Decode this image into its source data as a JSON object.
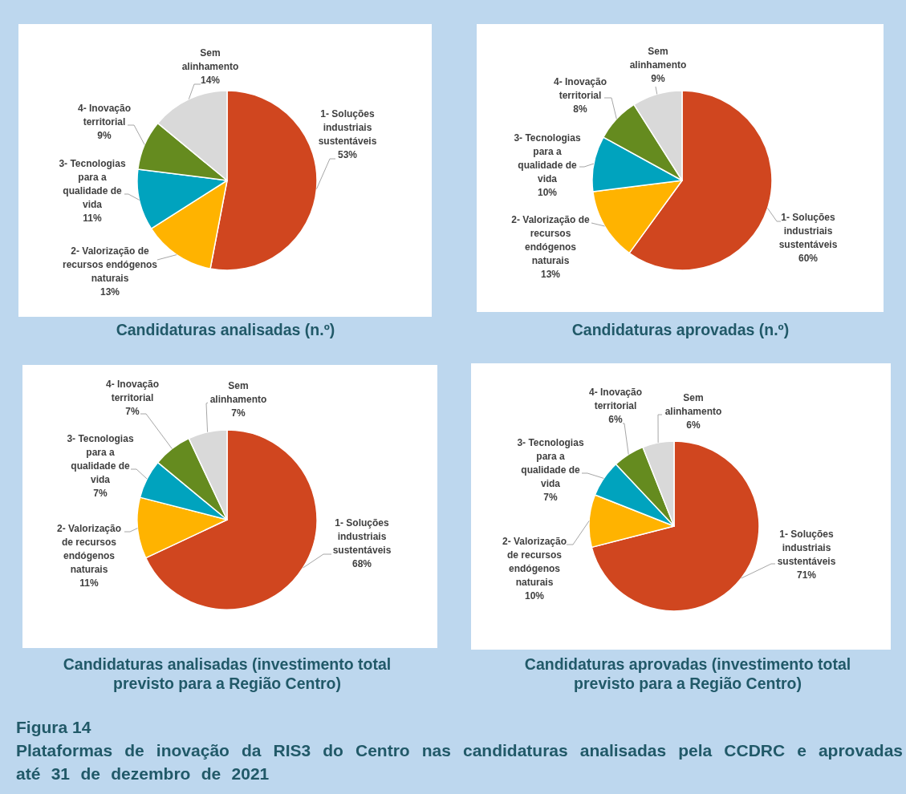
{
  "chart_data": [
    {
      "type": "pie",
      "title": "Candidaturas analisadas (n.º)",
      "categories": [
        "1- Soluções industriais sustentáveis",
        "2- Valorização de recursos endógenos naturais",
        "3- Tecnologias para a qualidade de vida",
        "4- Inovação territorial",
        "Sem alinhamento"
      ],
      "values": [
        53,
        13,
        11,
        9,
        14
      ],
      "value_labels": [
        "53%",
        "13%",
        "11%",
        "9%",
        "14%"
      ],
      "colors": [
        "#d0461f",
        "#ffb300",
        "#00a3be",
        "#658b1f",
        "#d9d9d9"
      ]
    },
    {
      "type": "pie",
      "title": "Candidaturas aprovadas (n.º)",
      "categories": [
        "1- Soluções industriais sustentáveis",
        "2- Valorização de recursos endógenos naturais",
        "3- Tecnologias para a qualidade de vida",
        "4- Inovação territorial",
        "Sem alinhamento"
      ],
      "values": [
        60,
        13,
        10,
        8,
        9
      ],
      "value_labels": [
        "60%",
        "13%",
        "10%",
        "8%",
        "9%"
      ],
      "colors": [
        "#d0461f",
        "#ffb300",
        "#00a3be",
        "#658b1f",
        "#d9d9d9"
      ]
    },
    {
      "type": "pie",
      "title": "Candidaturas analisadas (investimento total previsto para a Região Centro)",
      "categories": [
        "1- Soluções industriais sustentáveis",
        "2- Valorização de recursos endógenos naturais",
        "3- Tecnologias para a qualidade de vida",
        "4- Inovação territorial",
        "Sem alinhamento"
      ],
      "values": [
        68,
        11,
        7,
        7,
        7
      ],
      "value_labels": [
        "68%",
        "11%",
        "7%",
        "7%",
        "7%"
      ],
      "colors": [
        "#d0461f",
        "#ffb300",
        "#00a3be",
        "#658b1f",
        "#d9d9d9"
      ]
    },
    {
      "type": "pie",
      "title": "Candidaturas aprovadas (investimento total previsto para a Região Centro)",
      "categories": [
        "1- Soluções industriais sustentáveis",
        "2- Valorização de recursos endógenos naturais",
        "3- Tecnologias para a qualidade de vida",
        "4- Inovação territorial",
        "Sem alinhamento"
      ],
      "values": [
        71,
        10,
        7,
        6,
        6
      ],
      "value_labels": [
        "71%",
        "10%",
        "7%",
        "6%",
        "6%"
      ],
      "colors": [
        "#d0461f",
        "#ffb300",
        "#00a3be",
        "#658b1f",
        "#d9d9d9"
      ]
    },
    {
      "type": "other",
      "title": "Figura 14",
      "subtitle": "Plataformas de inovação da RIS3 do Centro nas candidaturas analisadas pela CCDRC e aprovadas até 31 de dezembro de 2021"
    }
  ]
}
